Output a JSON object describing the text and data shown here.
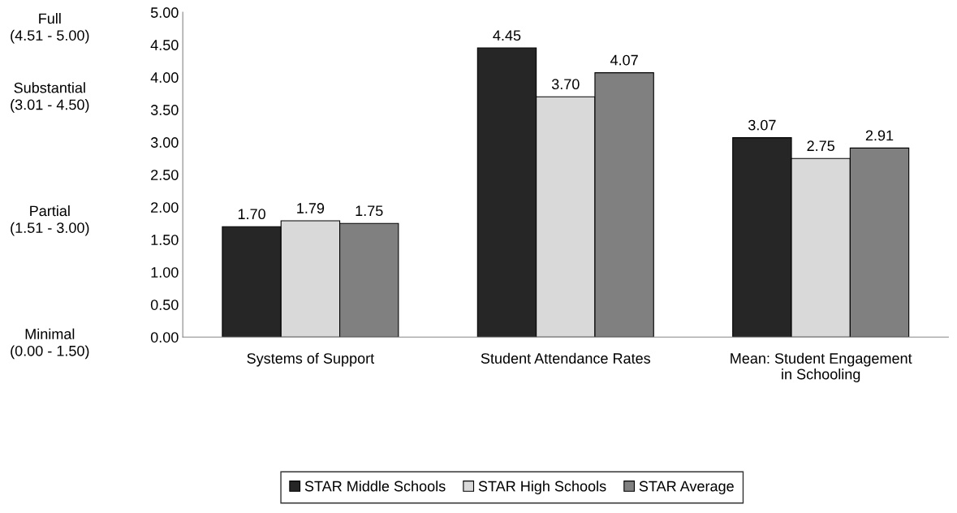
{
  "chart_data": {
    "type": "bar",
    "categories": [
      "Systems of Support",
      "Student Attendance Rates",
      "Mean: Student Engagement\nin Schooling"
    ],
    "series": [
      {
        "name": "STAR Middle Schools",
        "color": "#262626",
        "values": [
          1.7,
          4.45,
          3.07
        ],
        "value_labels": [
          "1.70",
          "4.45",
          "3.07"
        ]
      },
      {
        "name": "STAR High Schools",
        "color": "#d9d9d9",
        "values": [
          1.79,
          3.7,
          2.75
        ],
        "value_labels": [
          "1.79",
          "3.70",
          "2.75"
        ]
      },
      {
        "name": "STAR Average",
        "color": "#808080",
        "values": [
          1.75,
          4.07,
          2.91
        ],
        "value_labels": [
          "1.75",
          "4.07",
          "2.91"
        ]
      }
    ],
    "ylim": [
      0,
      5
    ],
    "yticks": [
      {
        "value": 0,
        "label": "0.00"
      },
      {
        "value": 0.5,
        "label": "0.50"
      },
      {
        "value": 1,
        "label": "1.00"
      },
      {
        "value": 1.5,
        "label": "1.50"
      },
      {
        "value": 2,
        "label": "2.00"
      },
      {
        "value": 2.5,
        "label": "2.50"
      },
      {
        "value": 3,
        "label": "3.00"
      },
      {
        "value": 3.5,
        "label": "3.50"
      },
      {
        "value": 4,
        "label": "4.00"
      },
      {
        "value": 4.5,
        "label": "4.50"
      },
      {
        "value": 5,
        "label": "5.00"
      }
    ],
    "annotations": [
      "Full\n(4.51 - 5.00)",
      "Substantial\n(3.01 - 4.50)",
      "Partial\n(1.51 - 3.00)",
      "Minimal\n(0.00 - 1.50)"
    ],
    "grid": false,
    "legend": "bottom"
  }
}
